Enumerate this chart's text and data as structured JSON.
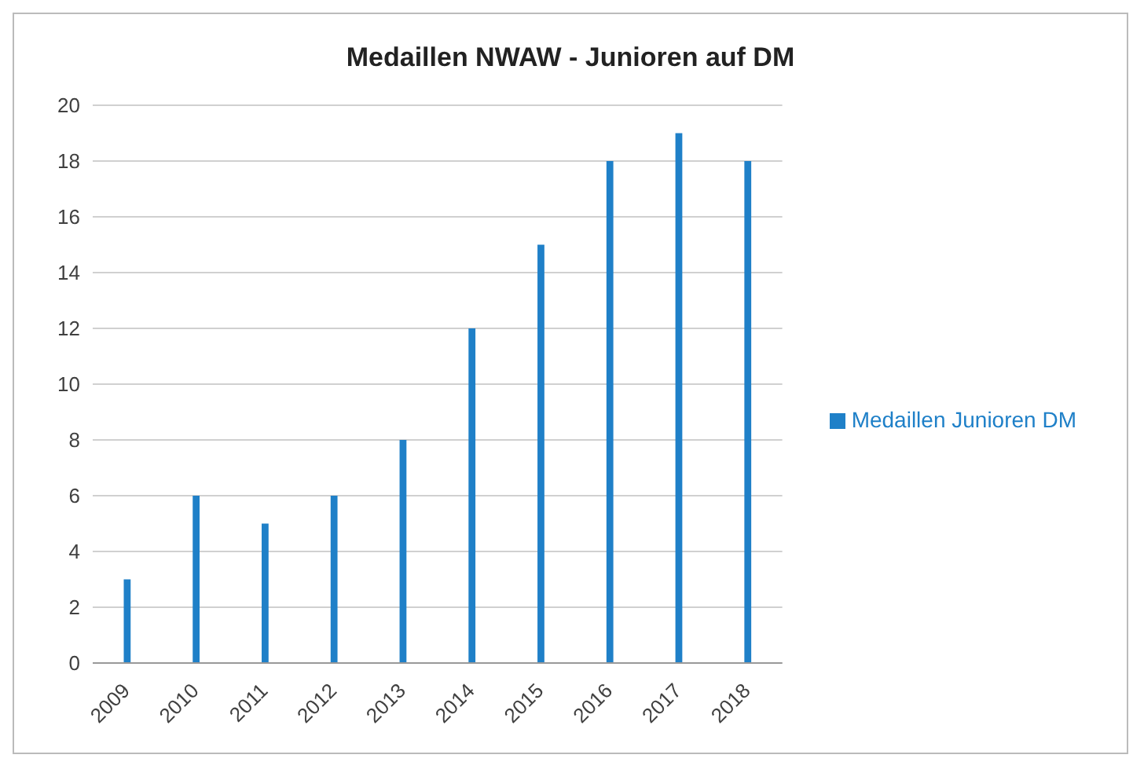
{
  "chart_data": {
    "type": "bar",
    "title": "Medaillen NWAW - Junioren auf DM",
    "categories": [
      "2009",
      "2010",
      "2011",
      "2012",
      "2013",
      "2014",
      "2015",
      "2016",
      "2017",
      "2018"
    ],
    "series": [
      {
        "name": "Medaillen Junioren DM",
        "color": "#1f80c8",
        "values": [
          3,
          6,
          5,
          6,
          8,
          12,
          15,
          18,
          19,
          18
        ]
      }
    ],
    "ylim": [
      0,
      20
    ],
    "yticks": [
      0,
      2,
      4,
      6,
      8,
      10,
      12,
      14,
      16,
      18,
      20
    ],
    "grid": "y",
    "legend": "right"
  }
}
